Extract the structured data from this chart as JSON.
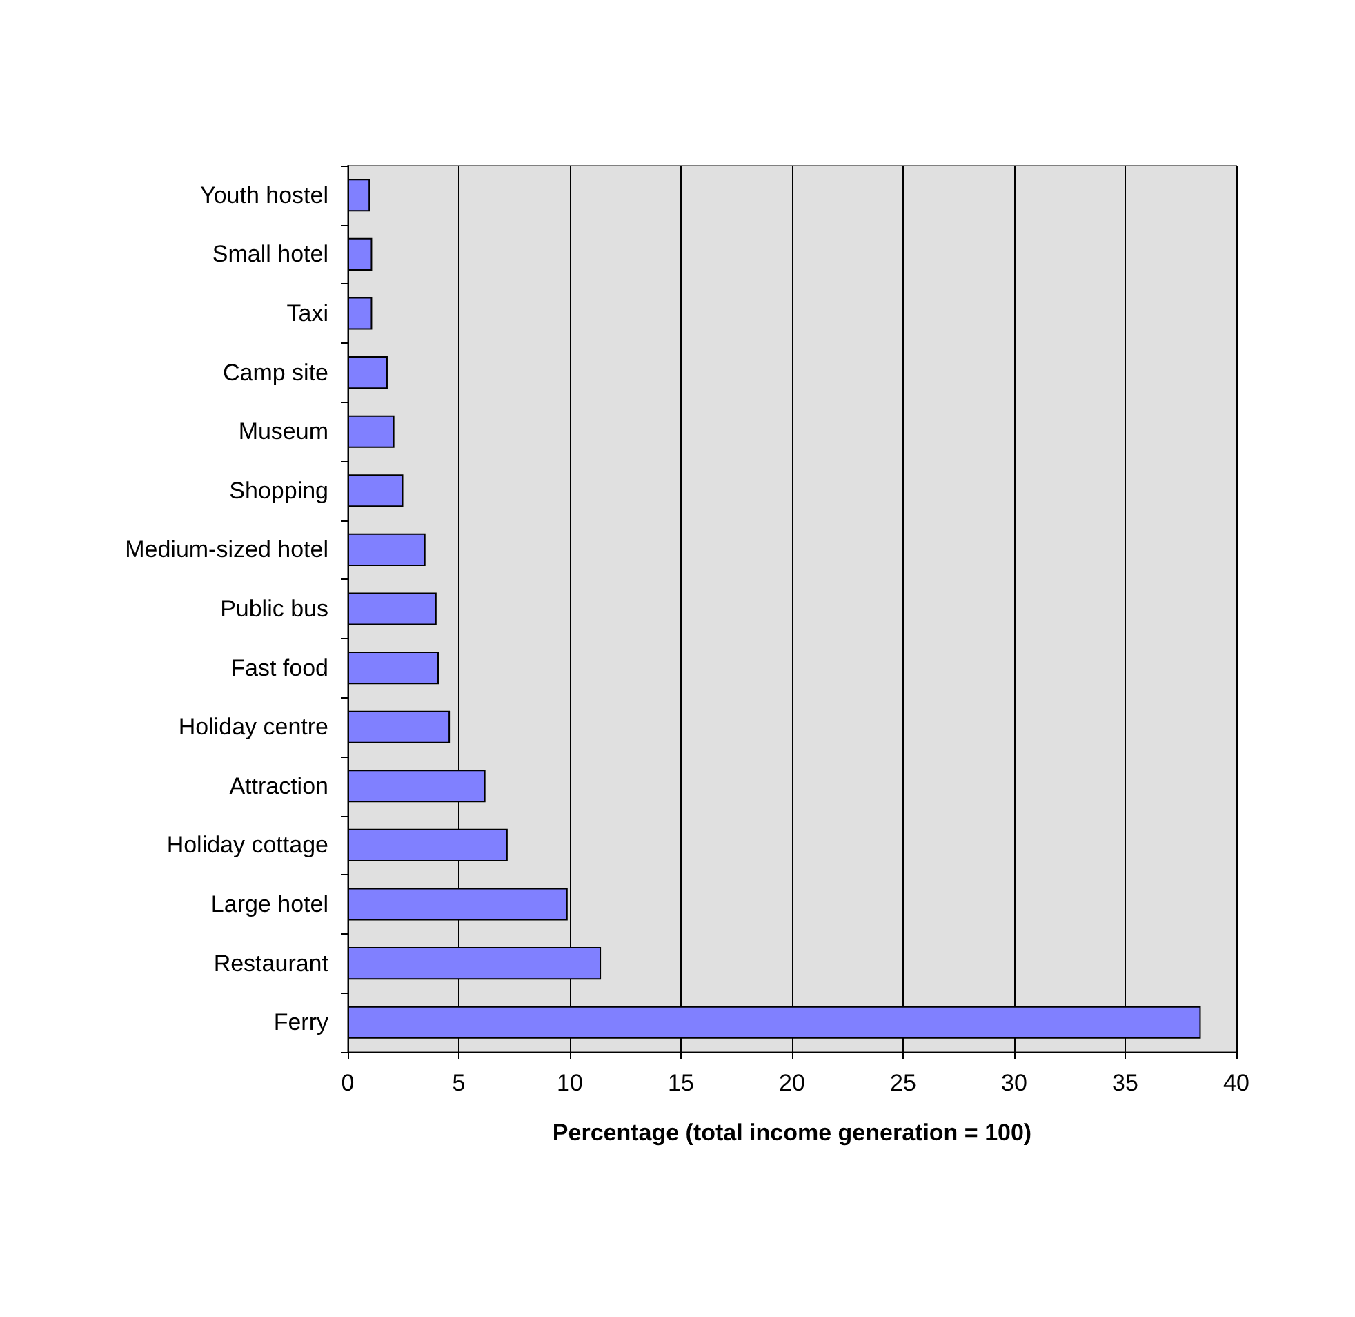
{
  "chart_data": {
    "type": "bar",
    "orientation": "horizontal",
    "xlabel": "Percentage (total income generation = 100)",
    "categories": [
      "Youth hostel",
      "Small hotel",
      "Taxi",
      "Camp site",
      "Museum",
      "Shopping",
      "Medium-sized hotel",
      "Public bus",
      "Fast food",
      "Holiday centre",
      "Attraction",
      "Holiday cottage",
      "Large hotel",
      "Restaurant",
      "Ferry"
    ],
    "values": [
      1.0,
      1.1,
      1.1,
      1.8,
      2.1,
      2.5,
      3.5,
      4.0,
      4.1,
      4.6,
      6.2,
      7.2,
      9.9,
      11.4,
      38.4
    ],
    "color": "#8080ff",
    "xlim": [
      0,
      40
    ],
    "xticks": [
      0,
      5,
      10,
      15,
      20,
      25,
      30,
      35,
      40
    ],
    "grid": "x"
  }
}
